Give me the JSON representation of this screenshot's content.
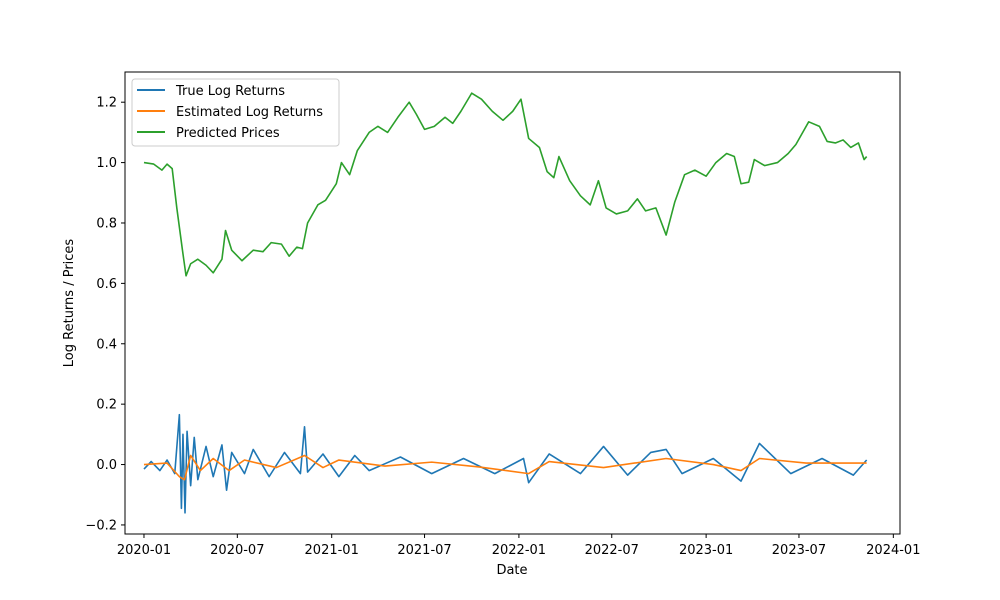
{
  "chart_data": {
    "type": "line",
    "title": "",
    "xlabel": "Date",
    "ylabel": "Log Returns / Prices",
    "xlim": [
      "2019-11-25",
      "2024-01-14"
    ],
    "ylim": [
      -0.23,
      1.3
    ],
    "x_ticks": [
      "2020-01",
      "2020-07",
      "2021-01",
      "2021-07",
      "2022-01",
      "2022-07",
      "2023-01",
      "2023-07",
      "2024-01"
    ],
    "y_ticks": [
      -0.2,
      0.0,
      0.2,
      0.4,
      0.6,
      0.8,
      1.0,
      1.2
    ],
    "y_tick_labels": [
      "−0.2",
      "0.0",
      "0.2",
      "0.4",
      "0.6",
      "0.8",
      "1.0",
      "1.2"
    ],
    "grid": false,
    "legend_position": "top-left",
    "series": [
      {
        "name": "True Log Returns",
        "color": "#1f77b4",
        "points": [
          [
            "2020-01-01",
            -0.015
          ],
          [
            "2020-01-15",
            0.01
          ],
          [
            "2020-02-01",
            -0.02
          ],
          [
            "2020-02-15",
            0.015
          ],
          [
            "2020-03-01",
            -0.03
          ],
          [
            "2020-03-10",
            0.165
          ],
          [
            "2020-03-14",
            -0.145
          ],
          [
            "2020-03-17",
            0.1
          ],
          [
            "2020-03-21",
            -0.16
          ],
          [
            "2020-03-25",
            0.11
          ],
          [
            "2020-04-01",
            -0.07
          ],
          [
            "2020-04-08",
            0.09
          ],
          [
            "2020-04-15",
            -0.05
          ],
          [
            "2020-05-01",
            0.06
          ],
          [
            "2020-05-15",
            -0.04
          ],
          [
            "2020-06-01",
            0.065
          ],
          [
            "2020-06-10",
            -0.085
          ],
          [
            "2020-06-20",
            0.04
          ],
          [
            "2020-07-15",
            -0.03
          ],
          [
            "2020-08-01",
            0.05
          ],
          [
            "2020-09-01",
            -0.04
          ],
          [
            "2020-10-01",
            0.04
          ],
          [
            "2020-11-01",
            -0.03
          ],
          [
            "2020-11-09",
            0.125
          ],
          [
            "2020-11-15",
            -0.025
          ],
          [
            "2020-12-15",
            0.035
          ],
          [
            "2021-01-15",
            -0.04
          ],
          [
            "2021-02-15",
            0.03
          ],
          [
            "2021-03-15",
            -0.02
          ],
          [
            "2021-05-15",
            0.025
          ],
          [
            "2021-07-15",
            -0.03
          ],
          [
            "2021-09-15",
            0.02
          ],
          [
            "2021-11-15",
            -0.03
          ],
          [
            "2022-01-10",
            0.02
          ],
          [
            "2022-01-20",
            -0.06
          ],
          [
            "2022-03-01",
            0.035
          ],
          [
            "2022-05-01",
            -0.03
          ],
          [
            "2022-06-15",
            0.06
          ],
          [
            "2022-08-01",
            -0.035
          ],
          [
            "2022-09-15",
            0.04
          ],
          [
            "2022-10-15",
            0.05
          ],
          [
            "2022-11-15",
            -0.03
          ],
          [
            "2023-01-15",
            0.02
          ],
          [
            "2023-03-10",
            -0.055
          ],
          [
            "2023-04-15",
            0.07
          ],
          [
            "2023-06-15",
            -0.03
          ],
          [
            "2023-08-15",
            0.02
          ],
          [
            "2023-10-15",
            -0.035
          ],
          [
            "2023-11-10",
            0.015
          ]
        ]
      },
      {
        "name": "Estimated Log Returns",
        "color": "#ff7f0e",
        "points": [
          [
            "2020-01-01",
            0.0
          ],
          [
            "2020-02-15",
            0.005
          ],
          [
            "2020-03-10",
            -0.04
          ],
          [
            "2020-03-20",
            -0.05
          ],
          [
            "2020-04-01",
            0.03
          ],
          [
            "2020-04-20",
            -0.02
          ],
          [
            "2020-05-15",
            0.02
          ],
          [
            "2020-06-15",
            -0.02
          ],
          [
            "2020-07-15",
            0.015
          ],
          [
            "2020-09-15",
            -0.01
          ],
          [
            "2020-11-09",
            0.03
          ],
          [
            "2020-12-15",
            -0.01
          ],
          [
            "2021-01-15",
            0.015
          ],
          [
            "2021-04-15",
            -0.005
          ],
          [
            "2021-07-15",
            0.008
          ],
          [
            "2021-10-15",
            -0.008
          ],
          [
            "2022-01-20",
            -0.03
          ],
          [
            "2022-03-01",
            0.01
          ],
          [
            "2022-06-15",
            -0.01
          ],
          [
            "2022-10-15",
            0.02
          ],
          [
            "2023-01-15",
            0.0
          ],
          [
            "2023-03-10",
            -0.02
          ],
          [
            "2023-04-15",
            0.02
          ],
          [
            "2023-07-15",
            0.005
          ],
          [
            "2023-11-10",
            0.005
          ]
        ]
      },
      {
        "name": "Predicted Prices",
        "color": "#2ca02c",
        "points": [
          [
            "2020-01-01",
            1.0
          ],
          [
            "2020-01-20",
            0.995
          ],
          [
            "2020-02-05",
            0.975
          ],
          [
            "2020-02-15",
            0.995
          ],
          [
            "2020-02-25",
            0.98
          ],
          [
            "2020-03-05",
            0.85
          ],
          [
            "2020-03-16",
            0.71
          ],
          [
            "2020-03-23",
            0.625
          ],
          [
            "2020-04-01",
            0.665
          ],
          [
            "2020-04-15",
            0.68
          ],
          [
            "2020-05-01",
            0.66
          ],
          [
            "2020-05-15",
            0.635
          ],
          [
            "2020-06-01",
            0.68
          ],
          [
            "2020-06-08",
            0.775
          ],
          [
            "2020-06-20",
            0.71
          ],
          [
            "2020-07-10",
            0.675
          ],
          [
            "2020-08-01",
            0.71
          ],
          [
            "2020-08-20",
            0.705
          ],
          [
            "2020-09-05",
            0.735
          ],
          [
            "2020-09-25",
            0.73
          ],
          [
            "2020-10-10",
            0.69
          ],
          [
            "2020-10-25",
            0.72
          ],
          [
            "2020-11-05",
            0.715
          ],
          [
            "2020-11-15",
            0.8
          ],
          [
            "2020-12-05",
            0.86
          ],
          [
            "2020-12-20",
            0.875
          ],
          [
            "2021-01-10",
            0.93
          ],
          [
            "2021-01-20",
            1.0
          ],
          [
            "2021-02-05",
            0.96
          ],
          [
            "2021-02-20",
            1.04
          ],
          [
            "2021-03-15",
            1.1
          ],
          [
            "2021-04-01",
            1.12
          ],
          [
            "2021-04-20",
            1.1
          ],
          [
            "2021-05-10",
            1.15
          ],
          [
            "2021-06-01",
            1.2
          ],
          [
            "2021-06-15",
            1.16
          ],
          [
            "2021-07-01",
            1.11
          ],
          [
            "2021-07-20",
            1.12
          ],
          [
            "2021-08-10",
            1.15
          ],
          [
            "2021-08-25",
            1.13
          ],
          [
            "2021-09-10",
            1.17
          ],
          [
            "2021-10-01",
            1.23
          ],
          [
            "2021-10-20",
            1.21
          ],
          [
            "2021-11-10",
            1.17
          ],
          [
            "2021-12-01",
            1.14
          ],
          [
            "2021-12-20",
            1.17
          ],
          [
            "2022-01-05",
            1.21
          ],
          [
            "2022-01-20",
            1.08
          ],
          [
            "2022-02-10",
            1.05
          ],
          [
            "2022-02-25",
            0.97
          ],
          [
            "2022-03-10",
            0.95
          ],
          [
            "2022-03-20",
            1.02
          ],
          [
            "2022-04-10",
            0.94
          ],
          [
            "2022-05-01",
            0.89
          ],
          [
            "2022-05-20",
            0.86
          ],
          [
            "2022-06-05",
            0.94
          ],
          [
            "2022-06-20",
            0.85
          ],
          [
            "2022-07-10",
            0.83
          ],
          [
            "2022-08-01",
            0.84
          ],
          [
            "2022-08-20",
            0.88
          ],
          [
            "2022-09-05",
            0.84
          ],
          [
            "2022-09-25",
            0.85
          ],
          [
            "2022-10-15",
            0.76
          ],
          [
            "2022-11-01",
            0.87
          ],
          [
            "2022-11-20",
            0.96
          ],
          [
            "2022-12-10",
            0.975
          ],
          [
            "2023-01-01",
            0.955
          ],
          [
            "2023-01-20",
            1.0
          ],
          [
            "2023-02-10",
            1.03
          ],
          [
            "2023-02-25",
            1.02
          ],
          [
            "2023-03-10",
            0.93
          ],
          [
            "2023-03-25",
            0.935
          ],
          [
            "2023-04-05",
            1.01
          ],
          [
            "2023-04-25",
            0.99
          ],
          [
            "2023-05-20",
            1.0
          ],
          [
            "2023-06-10",
            1.03
          ],
          [
            "2023-06-25",
            1.06
          ],
          [
            "2023-07-20",
            1.135
          ],
          [
            "2023-08-10",
            1.12
          ],
          [
            "2023-08-25",
            1.07
          ],
          [
            "2023-09-10",
            1.065
          ],
          [
            "2023-09-25",
            1.075
          ],
          [
            "2023-10-10",
            1.05
          ],
          [
            "2023-10-25",
            1.065
          ],
          [
            "2023-11-05",
            1.01
          ],
          [
            "2023-11-10",
            1.02
          ]
        ]
      }
    ]
  }
}
